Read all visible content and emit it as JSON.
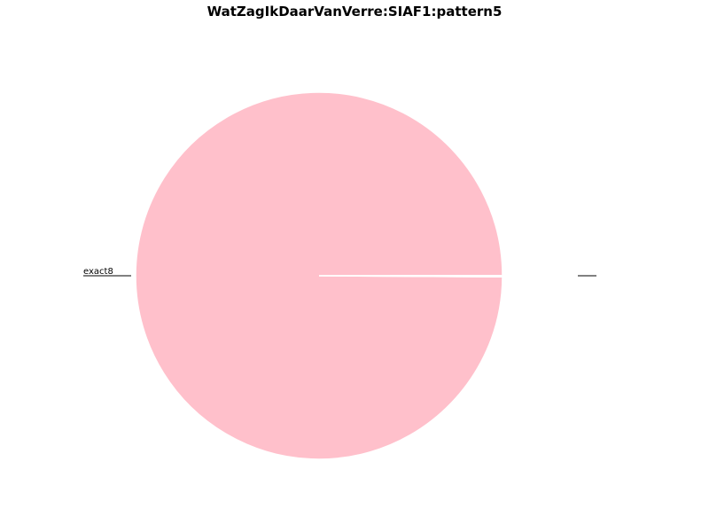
{
  "chart_data": {
    "type": "pie",
    "title": "WatZagIkDaarVanVerre:SIAF1:pattern5",
    "slices": [
      {
        "label": "exact8",
        "value": 99.9,
        "color": "#ffc0cb"
      },
      {
        "label": "",
        "value": 0.1,
        "color": "#ffc0cb"
      }
    ],
    "slice_edge_color": "#ffffff",
    "label_line_color": "#000000"
  }
}
